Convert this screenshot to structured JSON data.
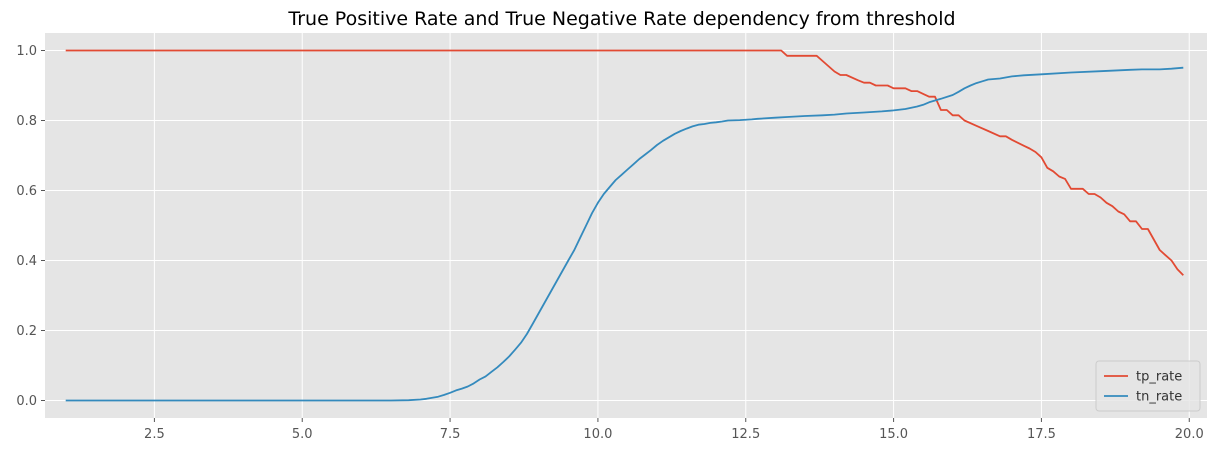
{
  "chart_data": {
    "type": "line",
    "title": "True Positive Rate and True Negative Rate dependency from threshold",
    "xlabel": "",
    "ylabel": "",
    "xlim": [
      0.65,
      20.3
    ],
    "ylim": [
      -0.05,
      1.05
    ],
    "x_ticks": [
      2.5,
      5.0,
      7.5,
      10.0,
      12.5,
      15.0,
      17.5,
      20.0
    ],
    "x_tick_labels": [
      "2.5",
      "5.0",
      "7.5",
      "10.0",
      "12.5",
      "15.0",
      "17.5",
      "20.0"
    ],
    "y_ticks": [
      0.0,
      0.2,
      0.4,
      0.6,
      0.8,
      1.0
    ],
    "y_tick_labels": [
      "0.0",
      "0.2",
      "0.4",
      "0.6",
      "0.8",
      "1.0"
    ],
    "grid": true,
    "background": "#e5e5e5",
    "legend_position": "lower-right",
    "series": [
      {
        "name": "tp_rate",
        "color": "#e24a33",
        "x": [
          1.0,
          13.0,
          13.1,
          13.2,
          13.5,
          13.7,
          13.8,
          14.0,
          14.1,
          14.2,
          14.4,
          14.5,
          14.6,
          14.7,
          14.8,
          14.9,
          15.0,
          15.1,
          15.2,
          15.3,
          15.4,
          15.5,
          15.6,
          15.7,
          15.8,
          15.9,
          16.0,
          16.1,
          16.2,
          16.4,
          16.6,
          16.8,
          16.9,
          17.0,
          17.2,
          17.3,
          17.4,
          17.5,
          17.6,
          17.7,
          17.8,
          17.9,
          18.0,
          18.1,
          18.2,
          18.3,
          18.4,
          18.5,
          18.6,
          18.7,
          18.8,
          18.9,
          19.0,
          19.1,
          19.2,
          19.3,
          19.4,
          19.5,
          19.6,
          19.7,
          19.8,
          19.9
        ],
        "y": [
          1.0,
          1.0,
          1.0,
          0.985,
          0.985,
          0.985,
          0.97,
          0.94,
          0.93,
          0.93,
          0.915,
          0.908,
          0.908,
          0.9,
          0.9,
          0.9,
          0.892,
          0.892,
          0.892,
          0.884,
          0.884,
          0.876,
          0.868,
          0.868,
          0.83,
          0.83,
          0.815,
          0.815,
          0.8,
          0.785,
          0.77,
          0.755,
          0.755,
          0.745,
          0.728,
          0.72,
          0.71,
          0.695,
          0.665,
          0.655,
          0.64,
          0.633,
          0.605,
          0.605,
          0.605,
          0.59,
          0.59,
          0.58,
          0.565,
          0.555,
          0.54,
          0.532,
          0.512,
          0.512,
          0.49,
          0.49,
          0.46,
          0.43,
          0.415,
          0.4,
          0.375,
          0.358
        ]
      },
      {
        "name": "tn_rate",
        "color": "#348abd",
        "x": [
          1.0,
          6.5,
          6.8,
          7.0,
          7.1,
          7.2,
          7.3,
          7.4,
          7.5,
          7.6,
          7.7,
          7.8,
          7.9,
          8.0,
          8.1,
          8.2,
          8.3,
          8.4,
          8.5,
          8.6,
          8.7,
          8.8,
          8.9,
          9.0,
          9.1,
          9.2,
          9.3,
          9.4,
          9.5,
          9.6,
          9.7,
          9.8,
          9.9,
          10.0,
          10.1,
          10.2,
          10.3,
          10.4,
          10.5,
          10.6,
          10.7,
          10.8,
          10.9,
          11.0,
          11.1,
          11.2,
          11.3,
          11.4,
          11.5,
          11.6,
          11.7,
          11.8,
          11.9,
          12.0,
          12.1,
          12.2,
          12.4,
          12.6,
          12.7,
          13.0,
          13.2,
          13.5,
          13.8,
          14.0,
          14.2,
          14.5,
          14.8,
          15.0,
          15.2,
          15.4,
          15.5,
          15.6,
          15.8,
          16.0,
          16.1,
          16.2,
          16.3,
          16.4,
          16.5,
          16.6,
          16.8,
          17.0,
          17.2,
          17.5,
          18.0,
          18.5,
          19.0,
          19.2,
          19.5,
          19.7,
          19.9
        ],
        "y": [
          0.0,
          0.0,
          0.001,
          0.003,
          0.005,
          0.008,
          0.011,
          0.016,
          0.022,
          0.029,
          0.034,
          0.04,
          0.049,
          0.06,
          0.069,
          0.082,
          0.095,
          0.11,
          0.126,
          0.145,
          0.165,
          0.19,
          0.22,
          0.25,
          0.28,
          0.31,
          0.34,
          0.37,
          0.4,
          0.43,
          0.465,
          0.5,
          0.535,
          0.565,
          0.59,
          0.61,
          0.63,
          0.645,
          0.66,
          0.675,
          0.69,
          0.703,
          0.716,
          0.73,
          0.742,
          0.752,
          0.762,
          0.77,
          0.777,
          0.783,
          0.788,
          0.79,
          0.793,
          0.795,
          0.797,
          0.8,
          0.801,
          0.803,
          0.805,
          0.808,
          0.81,
          0.813,
          0.815,
          0.817,
          0.82,
          0.823,
          0.826,
          0.829,
          0.833,
          0.84,
          0.845,
          0.852,
          0.862,
          0.873,
          0.882,
          0.892,
          0.9,
          0.907,
          0.912,
          0.917,
          0.92,
          0.926,
          0.929,
          0.932,
          0.937,
          0.941,
          0.945,
          0.946,
          0.946,
          0.948,
          0.951
        ]
      }
    ]
  }
}
